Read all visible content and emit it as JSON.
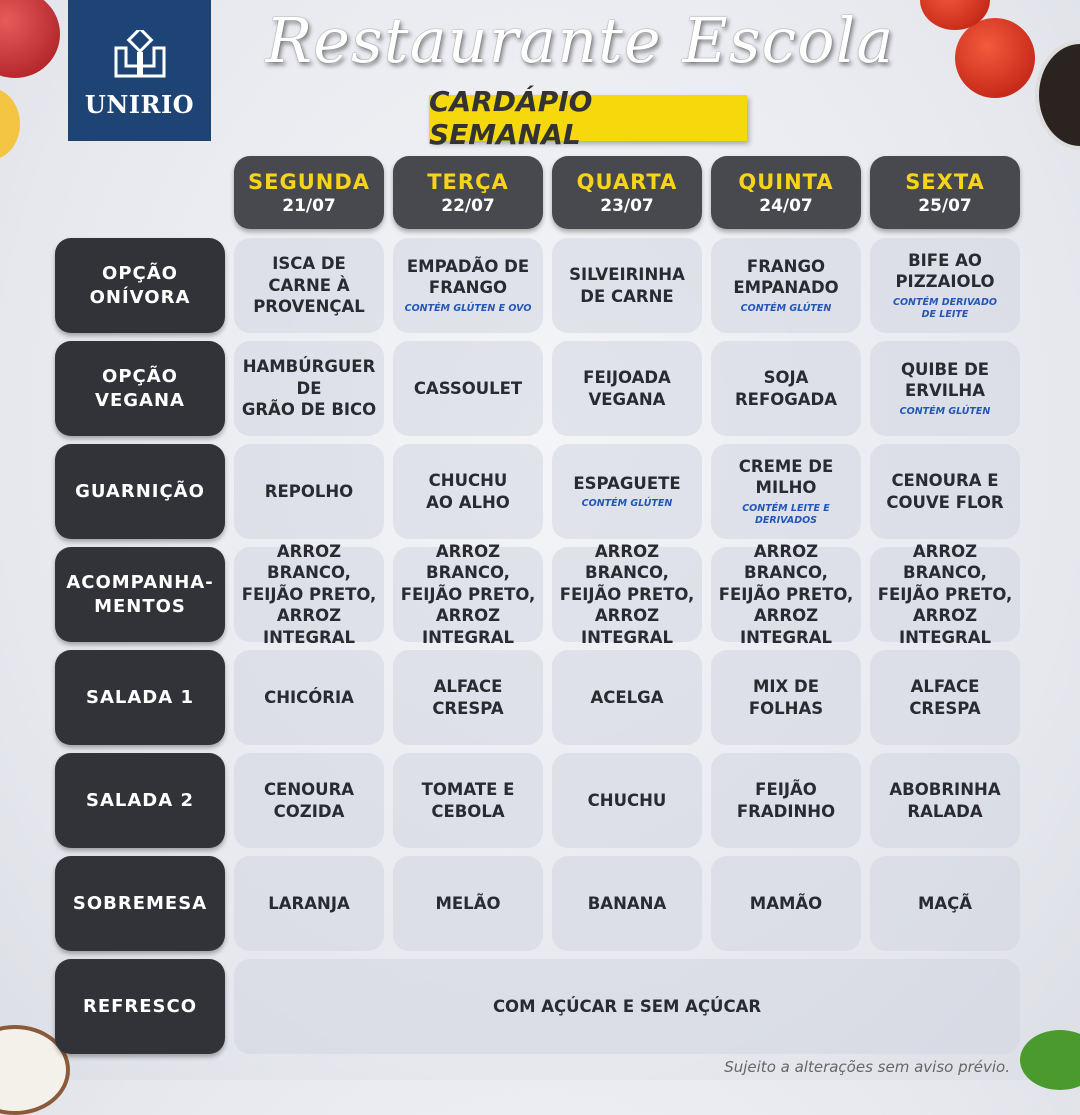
{
  "logo": {
    "text": "UNIRIO"
  },
  "header": {
    "title": "Restaurante Escola",
    "subtitle": "CARDÁPIO SEMANAL"
  },
  "days": [
    {
      "name": "SEGUNDA",
      "date": "21/07"
    },
    {
      "name": "TERÇA",
      "date": "22/07"
    },
    {
      "name": "QUARTA",
      "date": "23/07"
    },
    {
      "name": "QUINTA",
      "date": "24/07"
    },
    {
      "name": "SEXTA",
      "date": "25/07"
    }
  ],
  "rows": [
    {
      "label": "OPÇÃO\nONÍVORA",
      "items": [
        {
          "text": "ISCA DE\nCARNE À\nPROVENÇAL"
        },
        {
          "text": "EMPADÃO DE\nFRANGO",
          "note": "CONTÉM GLÚTEN E OVO"
        },
        {
          "text": "SILVEIRINHA\nDE CARNE"
        },
        {
          "text": "FRANGO\nEMPANADO",
          "note": "CONTÉM GLÚTEN"
        },
        {
          "text": "BIFE AO\nPIZZAIOLO",
          "note": "CONTÉM DERIVADO\nDE LEITE"
        }
      ]
    },
    {
      "label": "OPÇÃO\nVEGANA",
      "items": [
        {
          "text": "HAMBÚRGUER\nDE\nGRÃO DE BICO"
        },
        {
          "text": "CASSOULET"
        },
        {
          "text": "FEIJOADA\nVEGANA"
        },
        {
          "text": "SOJA\nREFOGADA"
        },
        {
          "text": "QUIBE DE\nERVILHA",
          "note": "CONTÉM GLÚTEN"
        }
      ]
    },
    {
      "label": "GUARNIÇÃO",
      "items": [
        {
          "text": "REPOLHO"
        },
        {
          "text": "CHUCHU\nAO ALHO"
        },
        {
          "text": "ESPAGUETE",
          "note": "CONTÉM GLÚTEN"
        },
        {
          "text": "CREME DE\nMILHO",
          "note": "CONTÉM LEITE E\nDERIVADOS"
        },
        {
          "text": "CENOURA E\nCOUVE FLOR"
        }
      ]
    },
    {
      "label": "ACOMPANHA-\nMENTOS",
      "items": [
        {
          "text": "ARROZ BRANCO,\nFEIJÃO PRETO,\nARROZ INTEGRAL"
        },
        {
          "text": "ARROZ BRANCO,\nFEIJÃO PRETO,\nARROZ INTEGRAL"
        },
        {
          "text": "ARROZ BRANCO,\nFEIJÃO PRETO,\nARROZ INTEGRAL"
        },
        {
          "text": "ARROZ BRANCO,\nFEIJÃO PRETO,\nARROZ INTEGRAL"
        },
        {
          "text": "ARROZ BRANCO,\nFEIJÃO PRETO,\nARROZ INTEGRAL"
        }
      ]
    },
    {
      "label": "SALADA 1",
      "items": [
        {
          "text": "CHICÓRIA"
        },
        {
          "text": "ALFACE\nCRESPA"
        },
        {
          "text": "ACELGA"
        },
        {
          "text": "MIX DE\nFOLHAS"
        },
        {
          "text": "ALFACE\nCRESPA"
        }
      ]
    },
    {
      "label": "SALADA 2",
      "items": [
        {
          "text": "CENOURA\nCOZIDA"
        },
        {
          "text": "TOMATE E\nCEBOLA"
        },
        {
          "text": "CHUCHU"
        },
        {
          "text": "FEIJÃO\nFRADINHO"
        },
        {
          "text": "ABOBRINHA\nRALADA"
        }
      ]
    },
    {
      "label": "SOBREMESA",
      "items": [
        {
          "text": "LARANJA"
        },
        {
          "text": "MELÃO"
        },
        {
          "text": "BANANA"
        },
        {
          "text": "MAMÃO"
        },
        {
          "text": "MAÇÃ"
        }
      ]
    },
    {
      "label": "REFRESCO",
      "merged": {
        "text": "COM AÇÚCAR E SEM AÇÚCAR"
      }
    }
  ],
  "footer": "Sujeito a alterações sem aviso prévio.",
  "colors": {
    "logo_bg": "#1d4474",
    "accent_yellow": "#f5d90c",
    "day_header": "#48494e",
    "row_label": "#323338",
    "note_blue": "#2457b5"
  }
}
